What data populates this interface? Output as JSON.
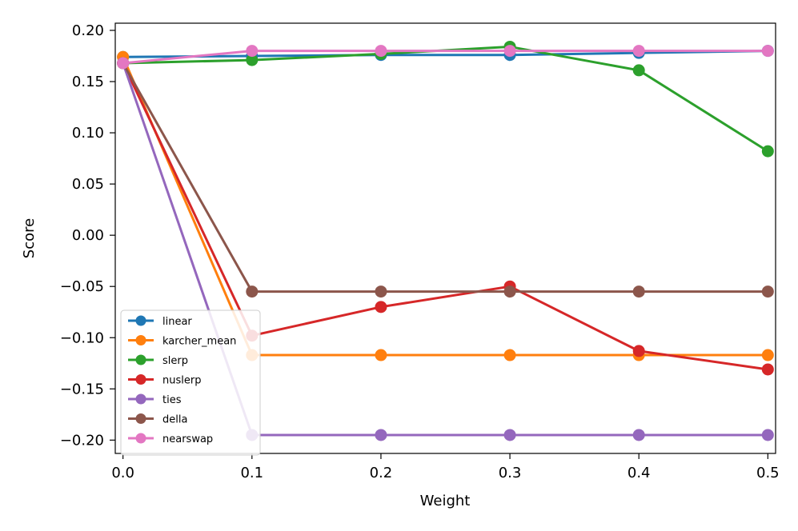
{
  "chart_data": {
    "type": "line",
    "xlabel": "Weight",
    "ylabel": "Score",
    "x": [
      0.0,
      0.1,
      0.2,
      0.3,
      0.4,
      0.5
    ],
    "x_ticks": [
      "0.0",
      "0.1",
      "0.2",
      "0.3",
      "0.4",
      "0.5"
    ],
    "y_ticks": [
      "0.20",
      "0.15",
      "0.10",
      "0.05",
      "0.00",
      "−0.05",
      "−0.10",
      "−0.15",
      "−0.20"
    ],
    "y_tick_values": [
      0.2,
      0.15,
      0.1,
      0.05,
      0.0,
      -0.05,
      -0.1,
      -0.15,
      -0.2
    ],
    "xlim": [
      -0.006,
      0.506
    ],
    "ylim": [
      -0.213,
      0.207
    ],
    "grid": false,
    "legend_position": "lower-left",
    "series": [
      {
        "name": "linear",
        "color": "#1f77b4",
        "values": [
          0.174,
          0.175,
          0.176,
          0.176,
          0.178,
          0.18
        ]
      },
      {
        "name": "karcher_mean",
        "color": "#ff7f0e",
        "values": [
          0.174,
          -0.117,
          -0.117,
          -0.117,
          -0.117,
          -0.117
        ]
      },
      {
        "name": "slerp",
        "color": "#2ca02c",
        "values": [
          0.168,
          0.171,
          0.177,
          0.184,
          0.161,
          0.082
        ]
      },
      {
        "name": "nuslerp",
        "color": "#d62728",
        "values": [
          0.168,
          -0.098,
          -0.07,
          -0.05,
          -0.113,
          -0.131
        ]
      },
      {
        "name": "ties",
        "color": "#9467bd",
        "values": [
          0.168,
          -0.195,
          -0.195,
          -0.195,
          -0.195,
          -0.195
        ]
      },
      {
        "name": "della",
        "color": "#8c564b",
        "values": [
          0.168,
          -0.055,
          -0.055,
          -0.055,
          -0.055,
          -0.055
        ]
      },
      {
        "name": "nearswap",
        "color": "#e377c2",
        "values": [
          0.168,
          0.18,
          0.18,
          0.18,
          0.18,
          0.18
        ]
      }
    ]
  }
}
